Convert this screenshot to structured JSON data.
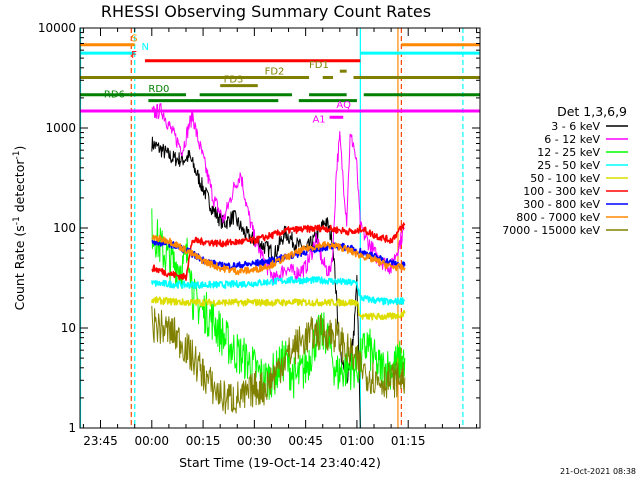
{
  "chart_data": {
    "type": "line",
    "title": "RHESSI Observing Summary Count Rates",
    "xlabel": "Start Time (19-Oct-14 23:40:42)",
    "ylabel": "Count Rate (s⁻¹ detector⁻¹)",
    "ylabel_main": "Count Rate (s",
    "ylabel_sup1": "-1",
    "ylabel_mid": " detector",
    "ylabel_sup2": "-1",
    "ylabel_end": ")",
    "yscale": "log",
    "xlim": [
      -21,
      96
    ],
    "ylim": [
      1,
      10000
    ],
    "x_ticks": [
      {
        "t": -15,
        "label": "23:45"
      },
      {
        "t": 0,
        "label": "00:00"
      },
      {
        "t": 15,
        "label": "00:15"
      },
      {
        "t": 30,
        "label": "00:30"
      },
      {
        "t": 45,
        "label": "00:45"
      },
      {
        "t": 60,
        "label": "01:00"
      },
      {
        "t": 75,
        "label": "01:15"
      }
    ],
    "y_ticks": [
      {
        "v": 1,
        "label": "1"
      },
      {
        "v": 10,
        "label": "10"
      },
      {
        "v": 100,
        "label": "100"
      },
      {
        "v": 1000,
        "label": "1000"
      },
      {
        "v": 10000,
        "label": "10000"
      }
    ],
    "legend_title": "Det 1,3,6,9",
    "legend_position": "right",
    "series": [
      {
        "name": "3 - 6 keV",
        "color": "#000000",
        "x": [
          0,
          3,
          6,
          9,
          11,
          13,
          15,
          18,
          21,
          24,
          27,
          30,
          33,
          36,
          39,
          42,
          45,
          48,
          51,
          53,
          54,
          55,
          56,
          57,
          58,
          59,
          60,
          61
        ],
        "y": [
          700,
          600,
          500,
          480,
          520,
          360,
          250,
          150,
          110,
          130,
          90,
          75,
          65,
          55,
          90,
          70,
          60,
          80,
          120,
          70,
          20,
          6,
          4,
          3,
          5,
          8,
          30,
          1
        ]
      },
      {
        "name": "6 - 12 keV",
        "color": "#ff00ff",
        "x": [
          0,
          3,
          6,
          9,
          11,
          12,
          13,
          15,
          18,
          21,
          24,
          26,
          28,
          30,
          33,
          36,
          39,
          42,
          45,
          47,
          48,
          50,
          52,
          53,
          54,
          55,
          56,
          57,
          58,
          59,
          60,
          61,
          66,
          70,
          74
        ],
        "y": [
          1400,
          1500,
          900,
          600,
          1100,
          1350,
          900,
          500,
          200,
          120,
          250,
          350,
          150,
          80,
          45,
          30,
          40,
          35,
          40,
          60,
          80,
          45,
          35,
          60,
          380,
          800,
          300,
          120,
          800,
          700,
          400,
          100,
          50,
          40,
          100
        ]
      },
      {
        "name": "12 - 25 keV",
        "color": "#00ff00",
        "x": [
          0,
          3,
          6,
          9,
          11,
          12,
          15,
          18,
          21,
          24,
          27,
          30,
          33,
          36,
          39,
          42,
          45,
          48,
          51,
          54,
          57,
          60,
          63,
          66,
          70,
          74
        ],
        "y": [
          100,
          60,
          45,
          40,
          60,
          20,
          15,
          12,
          8,
          6,
          5,
          4,
          3,
          3.5,
          5,
          3,
          4,
          8,
          9,
          3.5,
          4,
          4,
          7,
          4,
          4,
          5
        ]
      },
      {
        "name": "25 - 50 keV",
        "color": "#00ffff",
        "x": [
          0,
          10,
          20,
          30,
          40,
          50,
          60,
          61,
          65,
          70,
          74
        ],
        "y": [
          28,
          27,
          27,
          28,
          30,
          30,
          28,
          20,
          19,
          18,
          19
        ]
      },
      {
        "name": "50 - 100 keV",
        "color": "#dddd00",
        "x": [
          0,
          10,
          20,
          30,
          40,
          50,
          60,
          61,
          70,
          74
        ],
        "y": [
          19,
          18,
          18,
          18,
          18,
          18,
          18,
          13,
          13,
          14
        ]
      },
      {
        "name": "100 - 300 keV",
        "color": "#ff0000",
        "x": [
          0,
          5,
          10,
          11,
          12,
          20,
          30,
          40,
          50,
          60,
          61,
          65,
          70,
          74
        ],
        "y": [
          40,
          35,
          32,
          55,
          75,
          70,
          75,
          95,
          100,
          90,
          100,
          85,
          75,
          110
        ]
      },
      {
        "name": "300 - 800 keV",
        "color": "#0000ff",
        "x": [
          0,
          5,
          10,
          15,
          20,
          25,
          30,
          35,
          40,
          45,
          50,
          55,
          60,
          65,
          70,
          74
        ],
        "y": [
          72,
          70,
          60,
          48,
          42,
          42,
          44,
          47,
          52,
          58,
          64,
          66,
          60,
          52,
          45,
          42
        ]
      },
      {
        "name": "800 - 7000 keV",
        "color": "#ff8800",
        "x": [
          0,
          5,
          10,
          15,
          20,
          25,
          30,
          35,
          40,
          45,
          50,
          55,
          60,
          65,
          70,
          74
        ],
        "y": [
          80,
          75,
          60,
          47,
          40,
          37,
          38,
          43,
          52,
          62,
          68,
          65,
          55,
          48,
          41,
          40
        ]
      },
      {
        "name": "7000 - 15000 keV",
        "color": "#808000",
        "x": [
          0,
          3,
          6,
          9,
          12,
          15,
          18,
          21,
          24,
          27,
          30,
          33,
          36,
          39,
          42,
          45,
          48,
          51,
          54,
          57,
          60,
          63,
          66,
          70,
          74
        ],
        "y": [
          11,
          10,
          9,
          7,
          5,
          3.5,
          2.5,
          2,
          2,
          2,
          2.5,
          2.5,
          3.5,
          5,
          6.5,
          8,
          9,
          9,
          8.5,
          6,
          4.5,
          3.5,
          3,
          3,
          3.2
        ]
      }
    ],
    "vertical_lines": [
      {
        "t": -22,
        "color": "#00ffff"
      },
      {
        "t": -6,
        "color": "#ff4400",
        "dashed": true
      },
      {
        "t": -5,
        "color": "#00ffff",
        "dashed": true
      },
      {
        "t": 61,
        "color": "#00ffff"
      },
      {
        "t": 72,
        "color": "#ff8800"
      },
      {
        "t": 73,
        "color": "#ff4400",
        "dashed": true
      },
      {
        "t": 91,
        "color": "#00ffff",
        "dashed": true
      }
    ],
    "flag_bars": [
      {
        "name": "S",
        "color": "#ff8800",
        "y": 6800,
        "segments": [
          [
            -21,
            -5
          ],
          [
            73,
            96
          ]
        ]
      },
      {
        "name": "N",
        "color": "#00ffff",
        "y": 5600,
        "segments": [
          [
            -21,
            -5
          ],
          [
            61,
            96
          ]
        ]
      },
      {
        "name": "F",
        "color": "#ff0000",
        "y": 4700,
        "segments": [
          [
            -2,
            61
          ]
        ]
      },
      {
        "name": "FD1",
        "color": "#808000",
        "y": 3700,
        "segments": [
          [
            55,
            57
          ]
        ]
      },
      {
        "name": "FD2",
        "color": "#808000",
        "y": 3200,
        "segments": [
          [
            -21,
            46
          ],
          [
            50,
            53
          ],
          [
            59,
            96
          ]
        ]
      },
      {
        "name": "FD3",
        "color": "#808000",
        "y": 2650,
        "segments": [
          [
            20,
            31
          ]
        ]
      },
      {
        "name": "RD0",
        "color": "#008000",
        "y": 2150,
        "segments": [
          [
            -21,
            10
          ],
          [
            14,
            41
          ],
          [
            46,
            57
          ],
          [
            62,
            96
          ]
        ]
      },
      {
        "name": "RD6",
        "color": "#008000",
        "y": 1880,
        "segments": [
          [
            -1,
            37
          ],
          [
            43,
            60
          ]
        ]
      },
      {
        "name": "AQ",
        "color": "#ff00ff",
        "y": 1480,
        "segments": [
          [
            -21,
            96
          ]
        ]
      },
      {
        "name": "A1",
        "color": "#ff00ff",
        "y": 1280,
        "segments": [
          [
            52,
            56
          ]
        ]
      }
    ],
    "timestamp": "21-Oct-2021 08:38"
  }
}
